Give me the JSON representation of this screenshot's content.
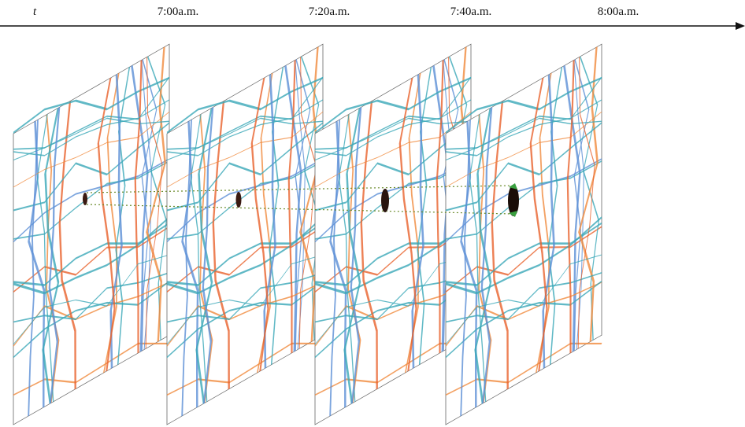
{
  "timeline": {
    "axis_label": "t",
    "times": [
      "7:00a.m.",
      "7:20a.m.",
      "7:40a.m.",
      "8:00a.m."
    ]
  }
}
